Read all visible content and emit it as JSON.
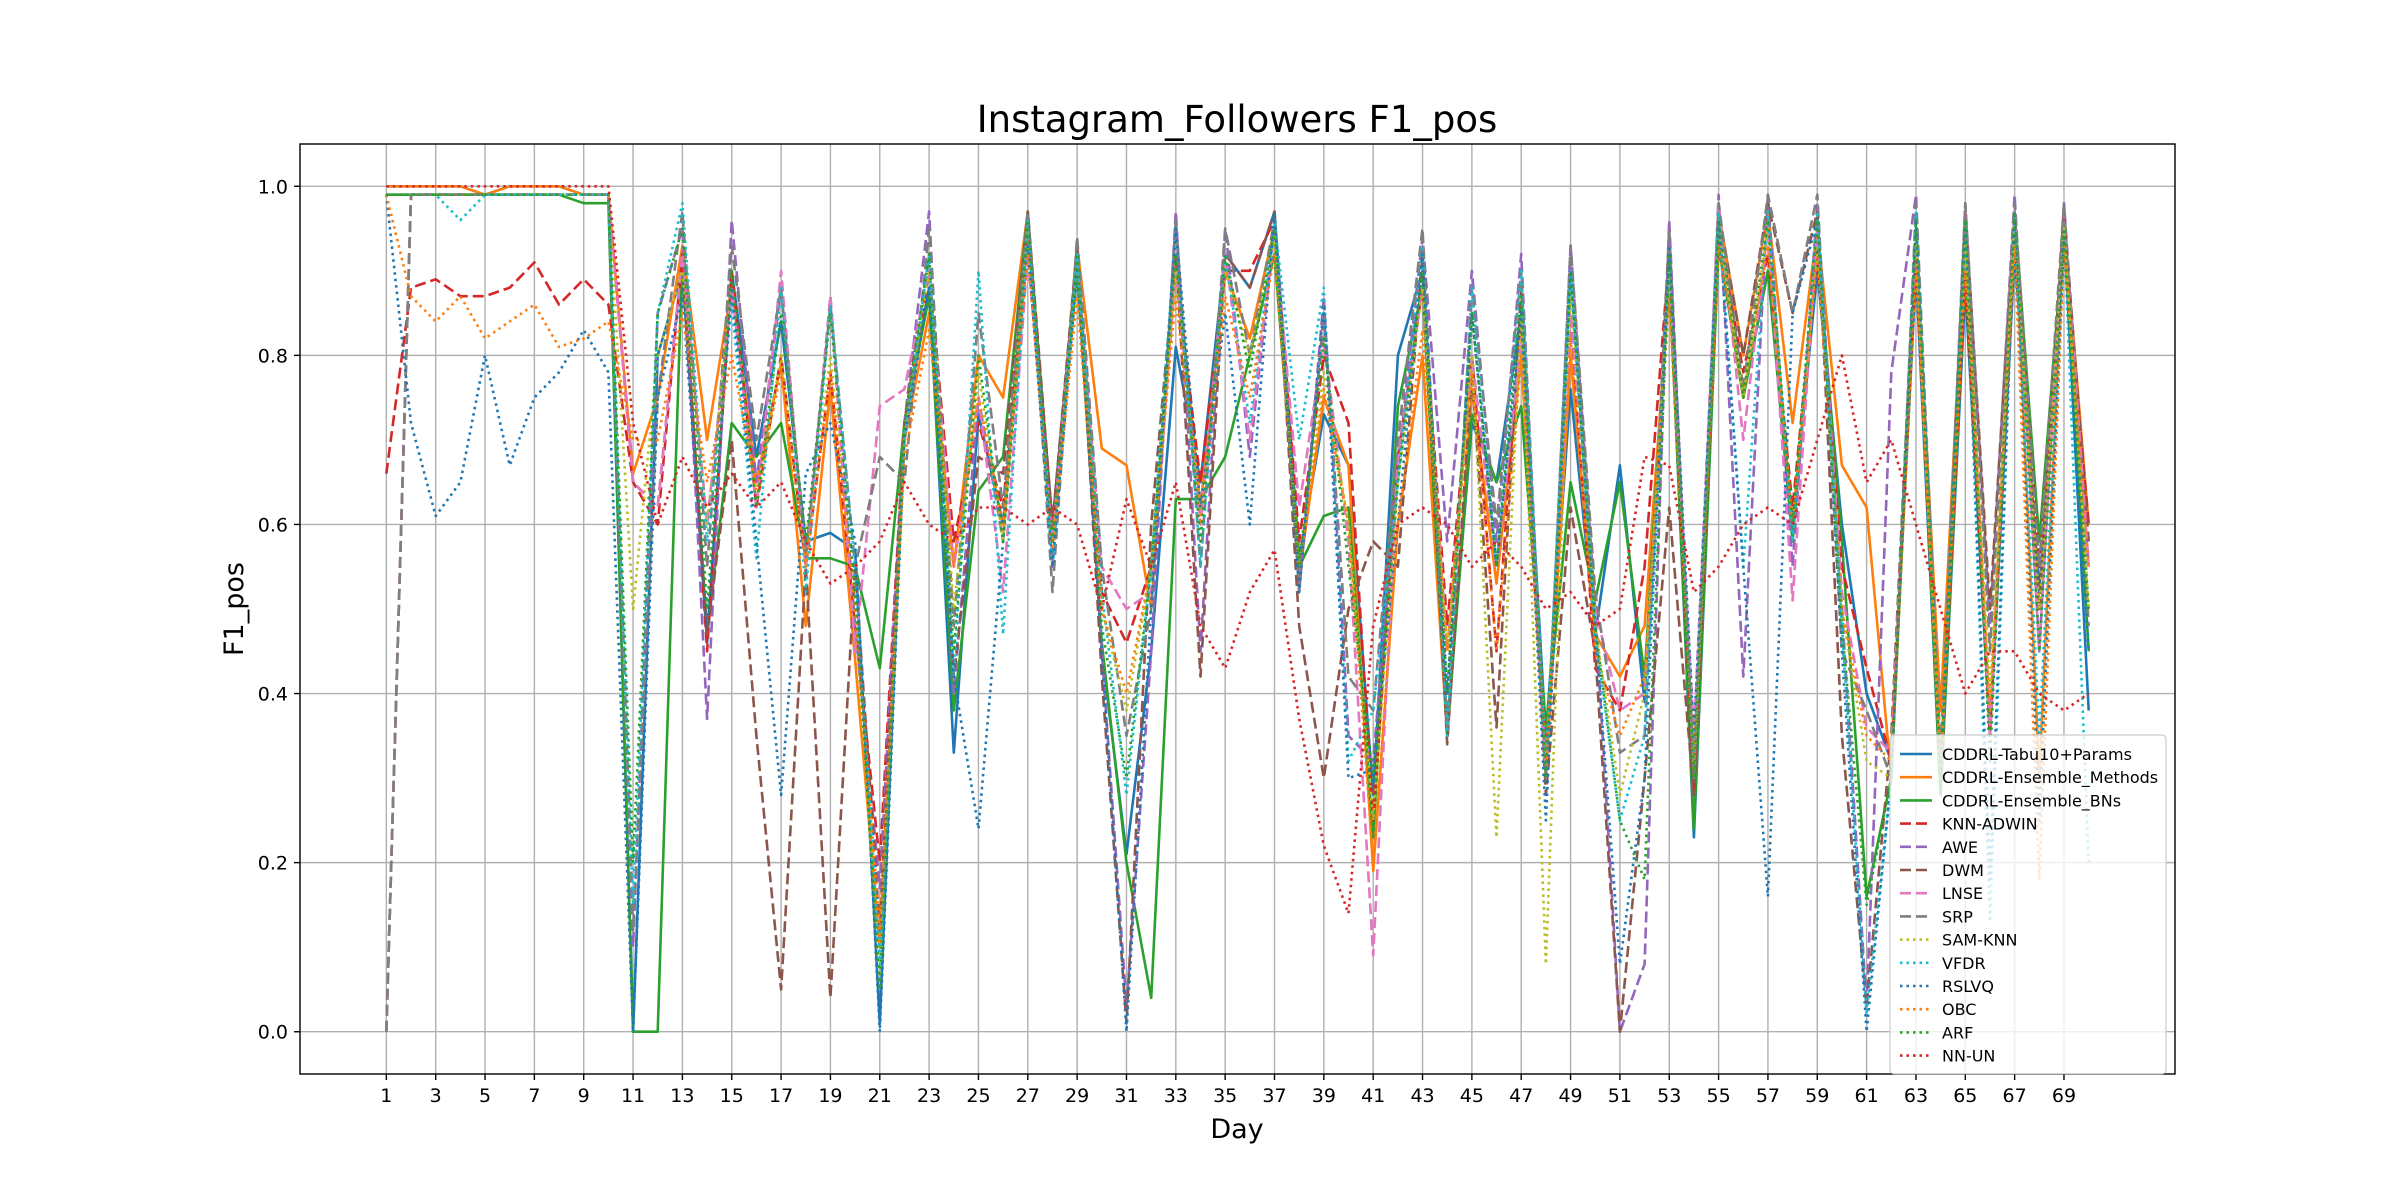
{
  "chart_data": {
    "type": "line",
    "title": "Instagram_Followers F1_pos",
    "xlabel": "Day",
    "ylabel": "F1_pos",
    "xlim": [
      -2.5,
      73.5
    ],
    "ylim": [
      -0.05,
      1.05
    ],
    "x_ticks": [
      1,
      3,
      5,
      7,
      9,
      11,
      13,
      15,
      17,
      19,
      21,
      23,
      25,
      27,
      29,
      31,
      33,
      35,
      37,
      39,
      41,
      43,
      45,
      47,
      49,
      51,
      53,
      55,
      57,
      59,
      61,
      63,
      65,
      67,
      69
    ],
    "y_ticks": [
      0.0,
      0.2,
      0.4,
      0.6,
      0.8,
      1.0
    ],
    "y_tick_labels": [
      "0.0",
      "0.2",
      "0.4",
      "0.6",
      "0.8",
      "1.0"
    ],
    "grid": true,
    "legend_position": "lower right",
    "x": [
      1,
      2,
      3,
      4,
      5,
      6,
      7,
      8,
      9,
      10,
      11,
      12,
      13,
      14,
      15,
      16,
      17,
      18,
      19,
      20,
      21,
      22,
      23,
      24,
      25,
      26,
      27,
      28,
      29,
      30,
      31,
      32,
      33,
      34,
      35,
      36,
      37,
      38,
      39,
      40,
      41,
      42,
      43,
      44,
      45,
      46,
      47,
      48,
      49,
      50,
      51,
      52,
      53,
      54,
      55,
      56,
      57,
      58,
      59,
      60,
      61,
      62,
      63,
      64,
      65,
      66,
      67,
      68,
      69,
      70
    ],
    "series": [
      {
        "name": "CDDRL-Tabu10+Params",
        "color": "#1f77b4",
        "style": "solid",
        "values": [
          1.0,
          1.0,
          1.0,
          1.0,
          0.99,
          1.0,
          1.0,
          1.0,
          0.99,
          0.99,
          0.0,
          0.8,
          0.9,
          0.46,
          0.9,
          0.68,
          0.84,
          0.58,
          0.59,
          0.57,
          0.01,
          0.72,
          0.88,
          0.33,
          0.73,
          0.6,
          0.96,
          0.6,
          0.92,
          0.45,
          0.21,
          0.45,
          0.81,
          0.65,
          0.92,
          0.88,
          0.97,
          0.56,
          0.73,
          0.67,
          0.28,
          0.8,
          0.9,
          0.36,
          0.72,
          0.65,
          0.85,
          0.35,
          0.76,
          0.47,
          0.67,
          0.39,
          0.9,
          0.23,
          0.93,
          0.75,
          0.9,
          0.6,
          0.9,
          0.6,
          0.4,
          0.32,
          0.9,
          0.28,
          0.88,
          0.35,
          0.92,
          0.52,
          0.95,
          0.38
        ]
      },
      {
        "name": "CDDRL-Ensemble_Methods",
        "color": "#ff7f0e",
        "style": "solid",
        "values": [
          1.0,
          1.0,
          1.0,
          1.0,
          0.99,
          1.0,
          1.0,
          1.0,
          0.99,
          0.99,
          0.66,
          0.75,
          0.93,
          0.7,
          0.88,
          0.65,
          0.79,
          0.48,
          0.76,
          0.44,
          0.1,
          0.7,
          0.85,
          0.55,
          0.8,
          0.75,
          0.97,
          0.58,
          0.93,
          0.69,
          0.67,
          0.5,
          0.92,
          0.62,
          0.9,
          0.82,
          0.95,
          0.54,
          0.75,
          0.67,
          0.19,
          0.6,
          0.8,
          0.35,
          0.76,
          0.53,
          0.8,
          0.3,
          0.8,
          0.47,
          0.42,
          0.48,
          0.88,
          0.32,
          0.97,
          0.8,
          0.97,
          0.72,
          0.95,
          0.67,
          0.62,
          0.3,
          0.93,
          0.38,
          0.95,
          0.36,
          0.97,
          0.3,
          0.96,
          0.6
        ]
      },
      {
        "name": "CDDRL-Ensemble_BNs",
        "color": "#2ca02c",
        "style": "solid",
        "values": [
          0.99,
          0.99,
          0.99,
          0.99,
          0.99,
          0.99,
          0.99,
          0.99,
          0.98,
          0.98,
          0.0,
          0.0,
          0.92,
          0.47,
          0.72,
          0.68,
          0.72,
          0.56,
          0.56,
          0.55,
          0.43,
          0.72,
          0.87,
          0.38,
          0.64,
          0.68,
          0.97,
          0.58,
          0.9,
          0.46,
          0.2,
          0.04,
          0.63,
          0.63,
          0.68,
          0.8,
          0.92,
          0.55,
          0.61,
          0.62,
          0.23,
          0.74,
          0.88,
          0.35,
          0.73,
          0.65,
          0.74,
          0.36,
          0.65,
          0.51,
          0.65,
          0.42,
          0.9,
          0.24,
          0.93,
          0.75,
          0.9,
          0.58,
          0.93,
          0.58,
          0.16,
          0.3,
          0.93,
          0.28,
          0.9,
          0.35,
          0.97,
          0.58,
          0.95,
          0.45
        ]
      },
      {
        "name": "KNN-ADWIN",
        "color": "#d62728",
        "style": "dashed",
        "values": [
          0.66,
          0.88,
          0.89,
          0.87,
          0.87,
          0.88,
          0.91,
          0.86,
          0.89,
          0.86,
          0.65,
          0.6,
          0.92,
          0.45,
          0.9,
          0.62,
          0.8,
          0.55,
          0.78,
          0.48,
          0.2,
          0.72,
          0.9,
          0.58,
          0.72,
          0.62,
          0.95,
          0.6,
          0.92,
          0.52,
          0.46,
          0.55,
          0.9,
          0.65,
          0.9,
          0.9,
          0.96,
          0.58,
          0.8,
          0.72,
          0.25,
          0.68,
          0.88,
          0.48,
          0.8,
          0.45,
          0.85,
          0.32,
          0.85,
          0.43,
          0.38,
          0.55,
          0.92,
          0.28,
          0.95,
          0.78,
          0.92,
          0.62,
          0.92,
          0.55,
          0.43,
          0.32,
          0.92,
          0.3,
          0.9,
          0.35,
          0.95,
          0.55,
          0.93,
          0.6
        ]
      },
      {
        "name": "AWE",
        "color": "#9467bd",
        "style": "dashed",
        "values": [
          0.0,
          0.99,
          0.99,
          0.99,
          0.99,
          0.99,
          0.99,
          0.99,
          0.99,
          0.99,
          0.1,
          0.85,
          0.95,
          0.37,
          0.96,
          0.65,
          0.88,
          0.56,
          0.87,
          0.48,
          0.17,
          0.72,
          0.97,
          0.4,
          0.75,
          0.58,
          0.97,
          0.55,
          0.93,
          0.45,
          0.03,
          0.45,
          0.97,
          0.45,
          0.95,
          0.68,
          0.95,
          0.52,
          0.87,
          0.35,
          0.32,
          0.67,
          0.94,
          0.58,
          0.9,
          0.58,
          0.92,
          0.3,
          0.93,
          0.5,
          0.0,
          0.08,
          0.96,
          0.3,
          0.99,
          0.42,
          0.99,
          0.55,
          0.98,
          0.5,
          0.03,
          0.78,
          0.99,
          0.3,
          0.98,
          0.48,
          0.99,
          0.45,
          0.98,
          0.55
        ]
      },
      {
        "name": "DWM",
        "color": "#8c564b",
        "style": "dashed",
        "values": [
          0.0,
          0.99,
          0.99,
          0.99,
          0.99,
          0.99,
          0.99,
          0.99,
          0.99,
          0.99,
          0.65,
          0.62,
          0.92,
          0.47,
          0.7,
          0.35,
          0.05,
          0.55,
          0.04,
          0.55,
          0.12,
          0.72,
          0.92,
          0.42,
          0.68,
          0.66,
          0.97,
          0.6,
          0.93,
          0.42,
          0.01,
          0.6,
          0.92,
          0.42,
          0.92,
          0.88,
          0.97,
          0.48,
          0.3,
          0.5,
          0.58,
          0.55,
          0.92,
          0.34,
          0.78,
          0.36,
          0.88,
          0.28,
          0.62,
          0.45,
          0.0,
          0.3,
          0.62,
          0.28,
          0.97,
          0.8,
          0.98,
          0.85,
          0.97,
          0.35,
          0.03,
          0.35,
          0.95,
          0.3,
          0.97,
          0.5,
          0.97,
          0.5,
          0.97,
          0.58
        ]
      },
      {
        "name": "LNSE",
        "color": "#e377c2",
        "style": "dashed",
        "values": [
          0.0,
          0.99,
          0.99,
          0.99,
          0.99,
          0.99,
          0.99,
          0.99,
          0.99,
          0.99,
          0.65,
          0.62,
          0.92,
          0.6,
          0.88,
          0.62,
          0.9,
          0.55,
          0.87,
          0.45,
          0.74,
          0.76,
          0.9,
          0.55,
          0.75,
          0.52,
          0.92,
          0.58,
          0.92,
          0.55,
          0.5,
          0.52,
          0.9,
          0.6,
          0.92,
          0.7,
          0.95,
          0.62,
          0.82,
          0.58,
          0.09,
          0.68,
          0.88,
          0.45,
          0.8,
          0.55,
          0.82,
          0.3,
          0.85,
          0.5,
          0.38,
          0.4,
          0.9,
          0.35,
          0.98,
          0.7,
          0.95,
          0.51,
          0.95,
          0.52,
          0.36,
          0.33,
          0.95,
          0.3,
          0.97,
          0.35,
          0.97,
          0.45,
          0.97,
          0.55
        ]
      },
      {
        "name": "SRP",
        "color": "#7f7f7f",
        "style": "dashed",
        "values": [
          0.0,
          0.99,
          0.99,
          0.99,
          0.99,
          0.99,
          0.99,
          0.99,
          0.99,
          0.99,
          0.12,
          0.75,
          0.97,
          0.55,
          0.93,
          0.7,
          0.88,
          0.56,
          0.86,
          0.55,
          0.68,
          0.65,
          0.95,
          0.48,
          0.85,
          0.62,
          0.97,
          0.52,
          0.94,
          0.55,
          0.35,
          0.5,
          0.96,
          0.55,
          0.95,
          0.8,
          0.96,
          0.52,
          0.85,
          0.42,
          0.38,
          0.7,
          0.95,
          0.36,
          0.88,
          0.6,
          0.9,
          0.3,
          0.93,
          0.52,
          0.33,
          0.35,
          0.95,
          0.3,
          0.98,
          0.76,
          0.99,
          0.85,
          0.99,
          0.45,
          0.38,
          0.3,
          0.98,
          0.33,
          0.98,
          0.45,
          0.98,
          0.55,
          0.98,
          0.48
        ]
      },
      {
        "name": "SAM-KNN",
        "color": "#bcbd22",
        "style": "dotted",
        "values": [
          0.99,
          0.99,
          0.99,
          0.99,
          0.99,
          0.99,
          0.99,
          0.99,
          0.99,
          0.99,
          0.5,
          0.8,
          0.9,
          0.6,
          0.88,
          0.62,
          0.8,
          0.55,
          0.8,
          0.5,
          0.05,
          0.72,
          0.9,
          0.5,
          0.78,
          0.58,
          0.95,
          0.58,
          0.9,
          0.5,
          0.38,
          0.55,
          0.9,
          0.6,
          0.9,
          0.8,
          0.94,
          0.55,
          0.78,
          0.6,
          0.25,
          0.65,
          0.88,
          0.45,
          0.8,
          0.23,
          0.85,
          0.08,
          0.88,
          0.48,
          0.28,
          0.4,
          0.9,
          0.3,
          0.95,
          0.75,
          0.95,
          0.6,
          0.93,
          0.5,
          0.32,
          0.3,
          0.93,
          0.3,
          0.93,
          0.4,
          0.95,
          0.5,
          0.95,
          0.5
        ]
      },
      {
        "name": "VFDR",
        "color": "#17becf",
        "style": "dotted",
        "values": [
          0.99,
          0.99,
          0.99,
          0.96,
          0.99,
          0.99,
          0.99,
          0.99,
          0.99,
          0.99,
          0.15,
          0.85,
          0.98,
          0.58,
          0.86,
          0.56,
          0.88,
          0.52,
          0.86,
          0.55,
          0.08,
          0.7,
          0.92,
          0.42,
          0.9,
          0.47,
          0.96,
          0.55,
          0.92,
          0.52,
          0.28,
          0.55,
          0.95,
          0.55,
          0.92,
          0.72,
          0.96,
          0.7,
          0.88,
          0.32,
          0.38,
          0.65,
          0.93,
          0.35,
          0.88,
          0.55,
          0.9,
          0.32,
          0.9,
          0.47,
          0.25,
          0.35,
          0.9,
          0.32,
          0.97,
          0.55,
          0.97,
          0.58,
          0.97,
          0.48,
          0.02,
          0.3,
          0.97,
          0.3,
          0.96,
          0.13,
          0.97,
          0.35,
          0.95,
          0.2
        ]
      },
      {
        "name": "RSLVQ",
        "color": "#1f77b4",
        "style": "dotted",
        "values": [
          0.99,
          0.72,
          0.61,
          0.65,
          0.8,
          0.67,
          0.75,
          0.78,
          0.83,
          0.78,
          0.0,
          0.75,
          0.87,
          0.48,
          0.88,
          0.58,
          0.28,
          0.66,
          0.72,
          0.58,
          0.0,
          0.7,
          0.88,
          0.42,
          0.24,
          0.58,
          0.93,
          0.55,
          0.9,
          0.45,
          0.0,
          0.5,
          0.95,
          0.62,
          0.85,
          0.6,
          0.97,
          0.52,
          0.86,
          0.3,
          0.31,
          0.6,
          0.92,
          0.4,
          0.85,
          0.55,
          0.85,
          0.25,
          0.9,
          0.48,
          0.08,
          0.3,
          0.93,
          0.35,
          0.96,
          0.55,
          0.16,
          0.85,
          0.96,
          0.45,
          0.0,
          0.3,
          0.96,
          0.3,
          0.96,
          0.18,
          0.96,
          0.25,
          0.94,
          0.45
        ]
      },
      {
        "name": "OBC",
        "color": "#ff7f0e",
        "style": "dotted",
        "values": [
          0.99,
          0.87,
          0.84,
          0.87,
          0.82,
          0.84,
          0.86,
          0.81,
          0.82,
          0.84,
          0.7,
          0.7,
          0.85,
          0.65,
          0.8,
          0.64,
          0.78,
          0.55,
          0.78,
          0.5,
          0.12,
          0.68,
          0.83,
          0.55,
          0.75,
          0.6,
          0.92,
          0.57,
          0.87,
          0.5,
          0.4,
          0.55,
          0.87,
          0.6,
          0.87,
          0.75,
          0.92,
          0.55,
          0.76,
          0.6,
          0.2,
          0.6,
          0.83,
          0.45,
          0.78,
          0.45,
          0.8,
          0.32,
          0.82,
          0.45,
          0.35,
          0.42,
          0.87,
          0.32,
          0.93,
          0.75,
          0.93,
          0.6,
          0.92,
          0.5,
          0.35,
          0.32,
          0.9,
          0.32,
          0.9,
          0.38,
          0.93,
          0.18,
          0.93,
          0.55
        ]
      },
      {
        "name": "ARF",
        "color": "#2ca02c",
        "style": "dotted",
        "values": [
          0.99,
          0.99,
          0.99,
          0.99,
          0.99,
          0.99,
          0.99,
          0.99,
          0.99,
          0.99,
          0.2,
          0.85,
          0.95,
          0.5,
          0.9,
          0.62,
          0.85,
          0.58,
          0.85,
          0.52,
          0.05,
          0.72,
          0.92,
          0.45,
          0.8,
          0.58,
          0.96,
          0.58,
          0.92,
          0.48,
          0.3,
          0.55,
          0.92,
          0.58,
          0.92,
          0.78,
          0.95,
          0.55,
          0.82,
          0.55,
          0.3,
          0.65,
          0.9,
          0.4,
          0.85,
          0.55,
          0.87,
          0.3,
          0.9,
          0.48,
          0.25,
          0.18,
          0.92,
          0.3,
          0.96,
          0.75,
          0.96,
          0.6,
          0.96,
          0.48,
          0.15,
          0.3,
          0.96,
          0.3,
          0.96,
          0.32,
          0.97,
          0.45,
          0.95,
          0.5
        ]
      },
      {
        "name": "NN-UN",
        "color": "#d62728",
        "style": "dotted",
        "values": [
          1.0,
          1.0,
          1.0,
          1.0,
          1.0,
          1.0,
          1.0,
          1.0,
          1.0,
          1.0,
          0.72,
          0.6,
          0.68,
          0.62,
          0.66,
          0.62,
          0.65,
          0.58,
          0.53,
          0.55,
          0.58,
          0.65,
          0.6,
          0.58,
          0.62,
          0.62,
          0.6,
          0.62,
          0.6,
          0.5,
          0.63,
          0.55,
          0.65,
          0.48,
          0.43,
          0.52,
          0.57,
          0.37,
          0.22,
          0.14,
          0.48,
          0.6,
          0.62,
          0.6,
          0.55,
          0.58,
          0.55,
          0.5,
          0.52,
          0.48,
          0.5,
          0.68,
          0.67,
          0.52,
          0.55,
          0.6,
          0.62,
          0.6,
          0.7,
          0.8,
          0.65,
          0.7,
          0.6,
          0.5,
          0.4,
          0.45,
          0.45,
          0.4,
          0.38,
          0.4
        ]
      }
    ]
  }
}
